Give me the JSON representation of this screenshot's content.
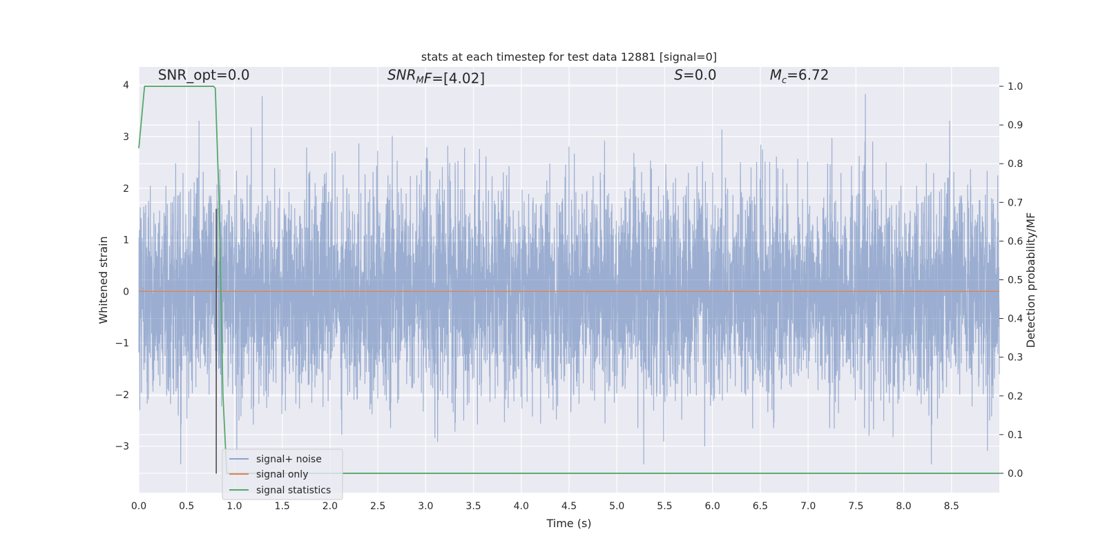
{
  "chart_data": {
    "type": "line",
    "title": "stats at each timestep for test data 12881 [signal=0]",
    "xlabel": "Time (s)",
    "ylabel_left": "Whitened strain",
    "ylabel_right": "Detection probability/MF",
    "xlim": [
      0.0,
      9.0
    ],
    "ylim_left": [
      -3.9,
      4.35
    ],
    "ylim_right": [
      -0.05,
      1.05
    ],
    "xticks": [
      0.0,
      0.5,
      1.0,
      1.5,
      2.0,
      2.5,
      3.0,
      3.5,
      4.0,
      4.5,
      5.0,
      5.5,
      6.0,
      6.5,
      7.0,
      7.5,
      8.0,
      8.5
    ],
    "xtick_labels": [
      "0.0",
      "0.5",
      "1.0",
      "1.5",
      "2.0",
      "2.5",
      "3.0",
      "3.5",
      "4.0",
      "4.5",
      "5.0",
      "5.5",
      "6.0",
      "6.5",
      "7.0",
      "7.5",
      "8.0",
      "8.5"
    ],
    "yticks_left": [
      -3,
      -2,
      -1,
      0,
      1,
      2,
      3,
      4
    ],
    "ytick_labels_left": [
      "−3",
      "−2",
      "−1",
      "0",
      "1",
      "2",
      "3",
      "4"
    ],
    "yticks_right": [
      0.0,
      0.1,
      0.2,
      0.3,
      0.4,
      0.5,
      0.6,
      0.7,
      0.8,
      0.9,
      1.0
    ],
    "ytick_labels_right": [
      "0.0",
      "0.1",
      "0.2",
      "0.3",
      "0.4",
      "0.5",
      "0.6",
      "0.7",
      "0.8",
      "0.9",
      "1.0"
    ],
    "grid": true,
    "legend_position": "lower-left",
    "annotations": [
      {
        "text": "SNR_opt=0.0",
        "x": 0.2,
        "y": 4.1
      },
      {
        "text": "SNR_MF=[4.02]",
        "x": 2.6,
        "y": 4.1
      },
      {
        "text": "S=0.0",
        "x": 5.6,
        "y": 4.1
      },
      {
        "text": "M_c=6.72",
        "x": 6.6,
        "y": 4.1
      }
    ],
    "vline": {
      "x": 0.81,
      "y_from": -3.53,
      "y_to": 1.6
    },
    "series": [
      {
        "name": "signal+ noise",
        "axis": "left",
        "color": "#4c72b0",
        "kind": "noise",
        "samples": 6000,
        "amplitude_std": 1.0,
        "max_peak": 4.0,
        "min_peak": -3.35
      },
      {
        "name": "signal only",
        "axis": "left",
        "color": "#dd8452",
        "x": [
          0.0,
          9.0
        ],
        "y": [
          0.0,
          0.0
        ]
      },
      {
        "name": "signal statistics",
        "axis": "right",
        "color": "#55a868",
        "x": [
          0.0,
          0.06,
          0.1,
          0.2,
          0.4,
          0.6,
          0.78,
          0.8,
          0.84,
          0.88,
          0.92,
          1.0,
          9.0
        ],
        "y": [
          0.84,
          1.0,
          1.0,
          1.0,
          1.0,
          1.0,
          1.0,
          0.995,
          0.7,
          0.2,
          0.0,
          0.0,
          0.0
        ]
      }
    ],
    "colors": {
      "background": "#eaeaf2",
      "grid": "#ffffff",
      "vline": "#4d4d4d"
    }
  }
}
